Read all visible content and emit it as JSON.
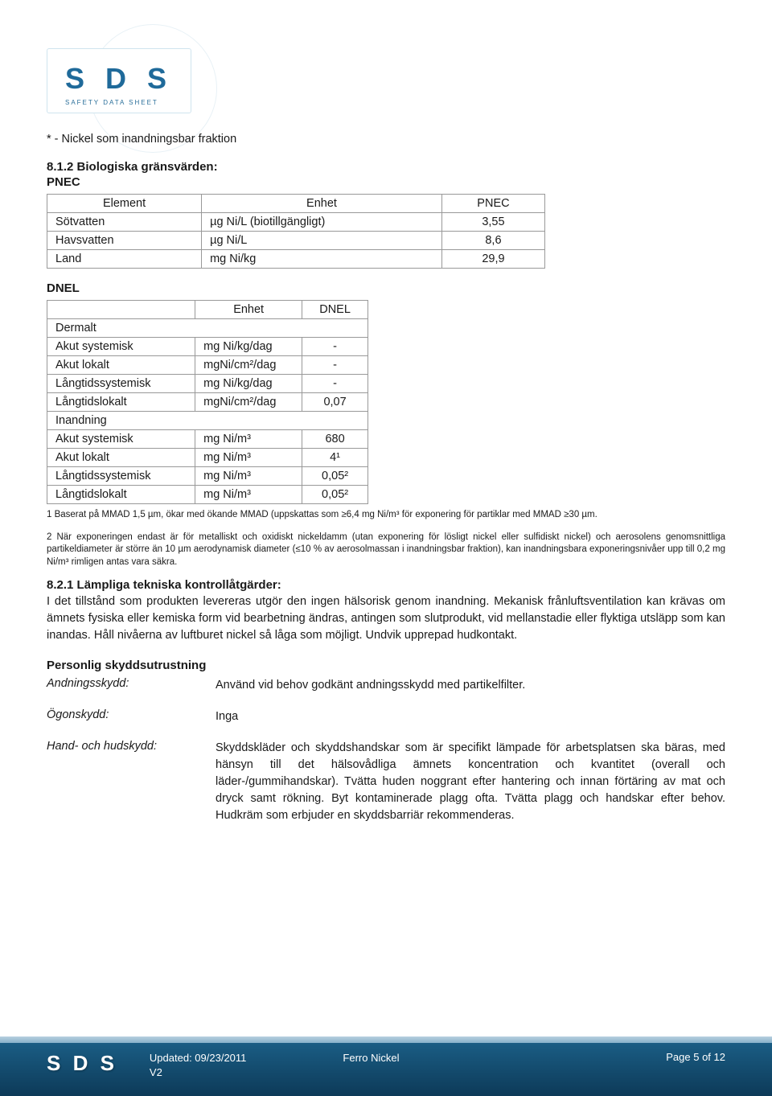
{
  "logo": {
    "main": "S D S",
    "sub": "SAFETY DATA SHEET"
  },
  "intro_line": "* - Nickel som inandningsbar fraktion",
  "s812": {
    "heading": "8.1.2 Biologiska gränsvärden:",
    "pnec_label": "PNEC",
    "pnec_table": {
      "header": [
        "Element",
        "Enhet",
        "PNEC"
      ],
      "rows": [
        [
          "Sötvatten",
          "µg Ni/L (biotillgängligt)",
          "3,55"
        ],
        [
          "Havsvatten",
          "µg Ni/L",
          "8,6"
        ],
        [
          "Land",
          "mg Ni/kg",
          "29,9"
        ]
      ]
    },
    "dnel_label": "DNEL",
    "dnel_table": {
      "header_unit": "Enhet",
      "header_dnel": "DNEL",
      "group1": "Dermalt",
      "rows1": [
        [
          "Akut systemisk",
          "mg Ni/kg/dag",
          "-"
        ],
        [
          "Akut lokalt",
          "mgNi/cm²/dag",
          "-"
        ],
        [
          "Långtidssystemisk",
          "mg Ni/kg/dag",
          "-"
        ],
        [
          "Långtidslokalt",
          "mgNi/cm²/dag",
          "0,07"
        ]
      ],
      "group2": "Inandning",
      "rows2": [
        [
          "Akut systemisk",
          "mg Ni/m³",
          "680"
        ],
        [
          "Akut lokalt",
          "mg Ni/m³",
          "4¹"
        ],
        [
          "Långtidssystemisk",
          "mg Ni/m³",
          "0,05²"
        ],
        [
          "Långtidslokalt",
          "mg Ni/m³",
          "0,05²"
        ]
      ]
    },
    "footnote1": "1 Baserat på MMAD 1,5 µm, ökar med ökande MMAD (uppskattas som ≥6,4 mg Ni/m³ för exponering för partiklar med MMAD ≥30 µm.",
    "footnote2": "2 När exponeringen endast är för metalliskt och oxidiskt nickeldamm (utan exponering för lösligt nickel eller sulfidiskt nickel) och aerosolens genomsnittliga partikeldiameter är större än 10 µm aerodynamisk diameter (≤10 % av aerosolmassan i inandningsbar fraktion), kan inandningsbara exponeringsnivåer upp till 0,2 mg Ni/m³ rimligen antas vara säkra."
  },
  "s821": {
    "heading": "8.2.1 Lämpliga tekniska kontrollåtgärder:",
    "body": "I det tillstånd som produkten levereras utgör den ingen hälsorisk genom inandning. Mekanisk frånluftsventilation kan krävas om ämnets fysiska eller kemiska form vid bearbetning ändras, antingen som slutprodukt, vid mellanstadie eller flyktiga utsläpp som kan inandas. Håll nivåerna av luftburet nickel så låga som möjligt. Undvik upprepad hudkontakt."
  },
  "ppe": {
    "heading": "Personlig skyddsutrustning",
    "items": [
      {
        "label": "Andningsskydd:",
        "value": "Använd vid behov godkänt andningsskydd med partikelfilter."
      },
      {
        "label": "Ögonskydd:",
        "value": "Inga"
      },
      {
        "label": "Hand- och hudskydd:",
        "value": "Skyddskläder och skyddshandskar som är specifikt lämpade för arbetsplatsen ska bäras, med hänsyn till det hälsovådliga ämnets koncentration och kvantitet (overall och läder-/gummihandskar). Tvätta huden noggrant efter hantering och innan förtäring av mat och dryck samt rökning. Byt kontaminerade plagg ofta. Tvätta plagg och handskar efter behov. Hudkräm som erbjuder en skyddsbarriär rekommenderas."
      }
    ]
  },
  "footer": {
    "logo": "S D S",
    "updated": "Updated: 09/23/2011",
    "version": "V2",
    "title": "Ferro Nickel",
    "page": "Page 5 of 12"
  }
}
